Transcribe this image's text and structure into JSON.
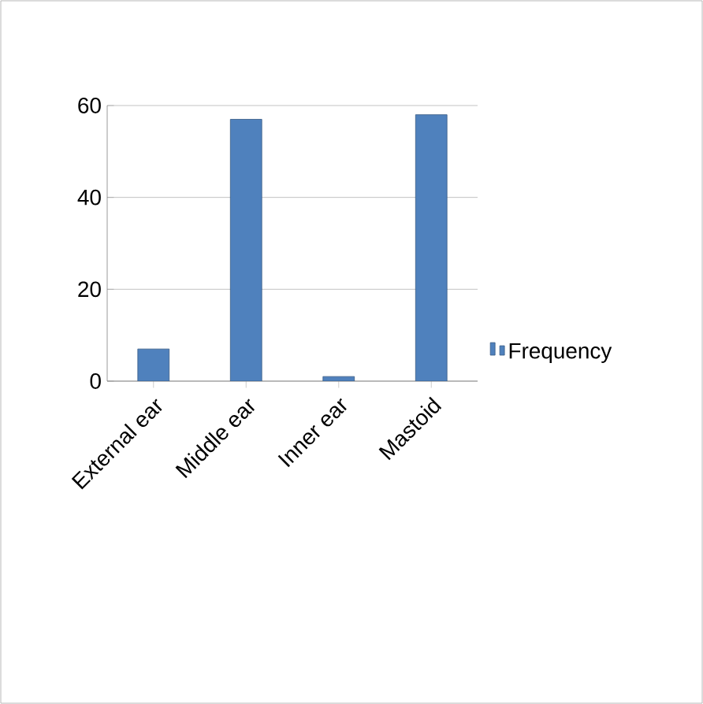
{
  "chart_data": {
    "type": "bar",
    "categories": [
      "External ear",
      "Middle ear",
      "Inner ear",
      "Mastoid"
    ],
    "series": [
      {
        "name": "Frequency",
        "color": "#4f81bd",
        "values": [
          7,
          57,
          1,
          58
        ]
      }
    ],
    "ylim": [
      0,
      60
    ],
    "yticks": [
      0,
      20,
      40,
      60
    ],
    "grid": "y",
    "legend": "right"
  }
}
